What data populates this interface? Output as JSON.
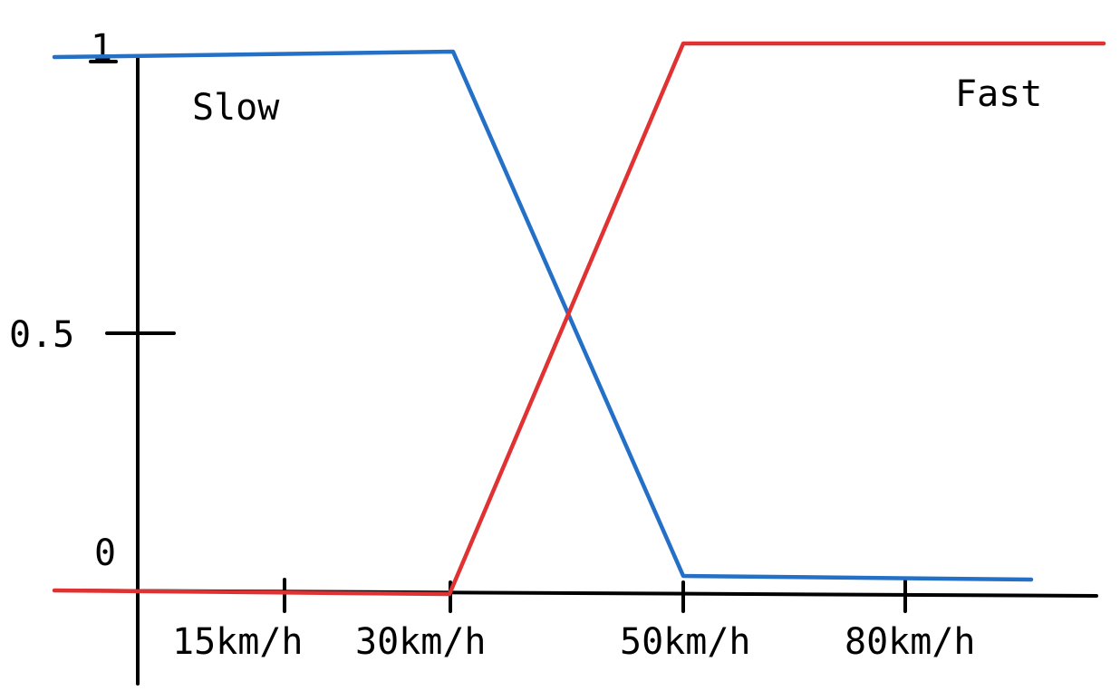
{
  "chart_data": {
    "type": "line",
    "title": "",
    "xlabel": "",
    "ylabel": "",
    "x_ticks": [
      "15km/h",
      "30km/h",
      "50km/h",
      "80km/h"
    ],
    "y_ticks": [
      "0",
      "0.5",
      "1"
    ],
    "ylim": [
      0,
      1
    ],
    "grid": false,
    "series": [
      {
        "name": "Slow",
        "color": "#2470c6",
        "points": [
          {
            "x": "left edge",
            "y": 1
          },
          {
            "x": "30km/h",
            "y": 1
          },
          {
            "x": "50km/h",
            "y": 0
          },
          {
            "x": "beyond 80km/h",
            "y": 0
          }
        ]
      },
      {
        "name": "Fast",
        "color": "#e03232",
        "points": [
          {
            "x": "left edge",
            "y": 0
          },
          {
            "x": "30km/h",
            "y": 0
          },
          {
            "x": "50km/h",
            "y": 1
          },
          {
            "x": "right edge",
            "y": 1
          }
        ]
      }
    ]
  }
}
